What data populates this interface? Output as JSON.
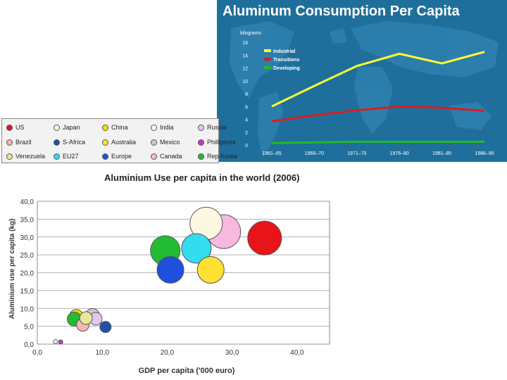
{
  "chart_data": [
    {
      "type": "line",
      "title": "Aluminum Consumption Per Capita",
      "ylabel": "kilograms",
      "x": [
        "1961–65",
        "1966–70",
        "1971–75",
        "1976–80",
        "1981–85",
        "1986–90"
      ],
      "yticks": [
        0,
        2,
        4,
        6,
        8,
        10,
        12,
        14,
        16
      ],
      "ylim": [
        0,
        16
      ],
      "series": [
        {
          "name": "Industrial",
          "color": "#ffff33",
          "values": [
            6.0,
            9.2,
            12.3,
            14.2,
            12.7,
            14.5
          ]
        },
        {
          "name": "Transitions",
          "color": "#d42020",
          "values": [
            3.7,
            4.6,
            5.4,
            6.0,
            5.8,
            5.3
          ]
        },
        {
          "name": "Developing",
          "color": "#22bb22",
          "values": [
            0.3,
            0.4,
            0.5,
            0.5,
            0.5,
            0.5
          ]
        }
      ],
      "legend_position": "top-left",
      "background": "world-map"
    },
    {
      "type": "scatter",
      "title": "Aluminium Use per capita in the world (2006)",
      "xlabel": "GDP per capita ('000 euro)",
      "ylabel": "Aluminium use per capita (kg)",
      "xlim": [
        0,
        45
      ],
      "ylim": [
        0,
        40
      ],
      "xticks": [
        "0,0",
        "10,0",
        "20,0",
        "30,0",
        "40,0"
      ],
      "yticks": [
        "0,0",
        "5,0",
        "10,0",
        "15,0",
        "20,0",
        "25,0",
        "30,0",
        "35,0",
        "40,0"
      ],
      "grid": true,
      "legend": [
        {
          "name": "US",
          "color": "#e8141a"
        },
        {
          "name": "Japan",
          "color": "#fff8e1"
        },
        {
          "name": "China",
          "color": "#ffdd00"
        },
        {
          "name": "India",
          "color": "#ffffff"
        },
        {
          "name": "Russia",
          "color": "#e0c8f0"
        },
        {
          "name": "Brazil",
          "color": "#f4b6b6"
        },
        {
          "name": "S-Africa",
          "color": "#1f4fa8"
        },
        {
          "name": "Australia",
          "color": "#ffe033"
        },
        {
          "name": "Mexico",
          "color": "#cccccc"
        },
        {
          "name": "Phillipines",
          "color": "#cc33cc"
        },
        {
          "name": "Venezuela",
          "color": "#e8e89a"
        },
        {
          "name": "EU27",
          "color": "#33ddee"
        },
        {
          "name": "Europe",
          "color": "#1f4fdd"
        },
        {
          "name": "Canada",
          "color": "#f8b8e0"
        },
        {
          "name": "Rep.Korea",
          "color": "#22bb33"
        }
      ],
      "points": [
        {
          "name": "US",
          "x": 35.0,
          "y": 29.7,
          "size": 24,
          "color": "#e8141a"
        },
        {
          "name": "Japan",
          "x": 26.0,
          "y": 33.8,
          "size": 23,
          "color": "#fff8e1"
        },
        {
          "name": "Canada",
          "x": 28.7,
          "y": 31.5,
          "size": 24,
          "color": "#f8b8e0"
        },
        {
          "name": "EU27",
          "x": 24.5,
          "y": 26.8,
          "size": 21,
          "color": "#33ddee"
        },
        {
          "name": "Rep.Korea",
          "x": 19.7,
          "y": 26.2,
          "size": 21,
          "color": "#22bb33"
        },
        {
          "name": "Australia",
          "x": 26.7,
          "y": 20.8,
          "size": 19,
          "color": "#ffe033"
        },
        {
          "name": "Europe",
          "x": 20.5,
          "y": 20.8,
          "size": 19,
          "color": "#1f4fdd"
        },
        {
          "name": "Brazil",
          "x": 7.0,
          "y": 5.4,
          "size": 9,
          "color": "#f4b6b6"
        },
        {
          "name": "Russia",
          "x": 9.0,
          "y": 7.1,
          "size": 9,
          "color": "#e0c8f0"
        },
        {
          "name": "China",
          "x": 6.0,
          "y": 7.7,
          "size": 10,
          "color": "#ffdd00"
        },
        {
          "name": "Mexico",
          "x": 8.5,
          "y": 8.0,
          "size": 10,
          "color": "#cccccc"
        },
        {
          "name": "Venezuela",
          "x": 7.5,
          "y": 7.3,
          "size": 9,
          "color": "#e8e89a"
        },
        {
          "name": "Rep.Korea (small)",
          "x": 5.7,
          "y": 7.0,
          "size": 10,
          "color": "#22bb33"
        },
        {
          "name": "S-Africa",
          "x": 10.5,
          "y": 4.8,
          "size": 8,
          "color": "#1f4fa8"
        },
        {
          "name": "India",
          "x": 2.8,
          "y": 0.7,
          "size": 3,
          "color": "#ffffff"
        },
        {
          "name": "Phillipines",
          "x": 3.6,
          "y": 0.6,
          "size": 3,
          "color": "#cc33cc"
        }
      ]
    }
  ]
}
